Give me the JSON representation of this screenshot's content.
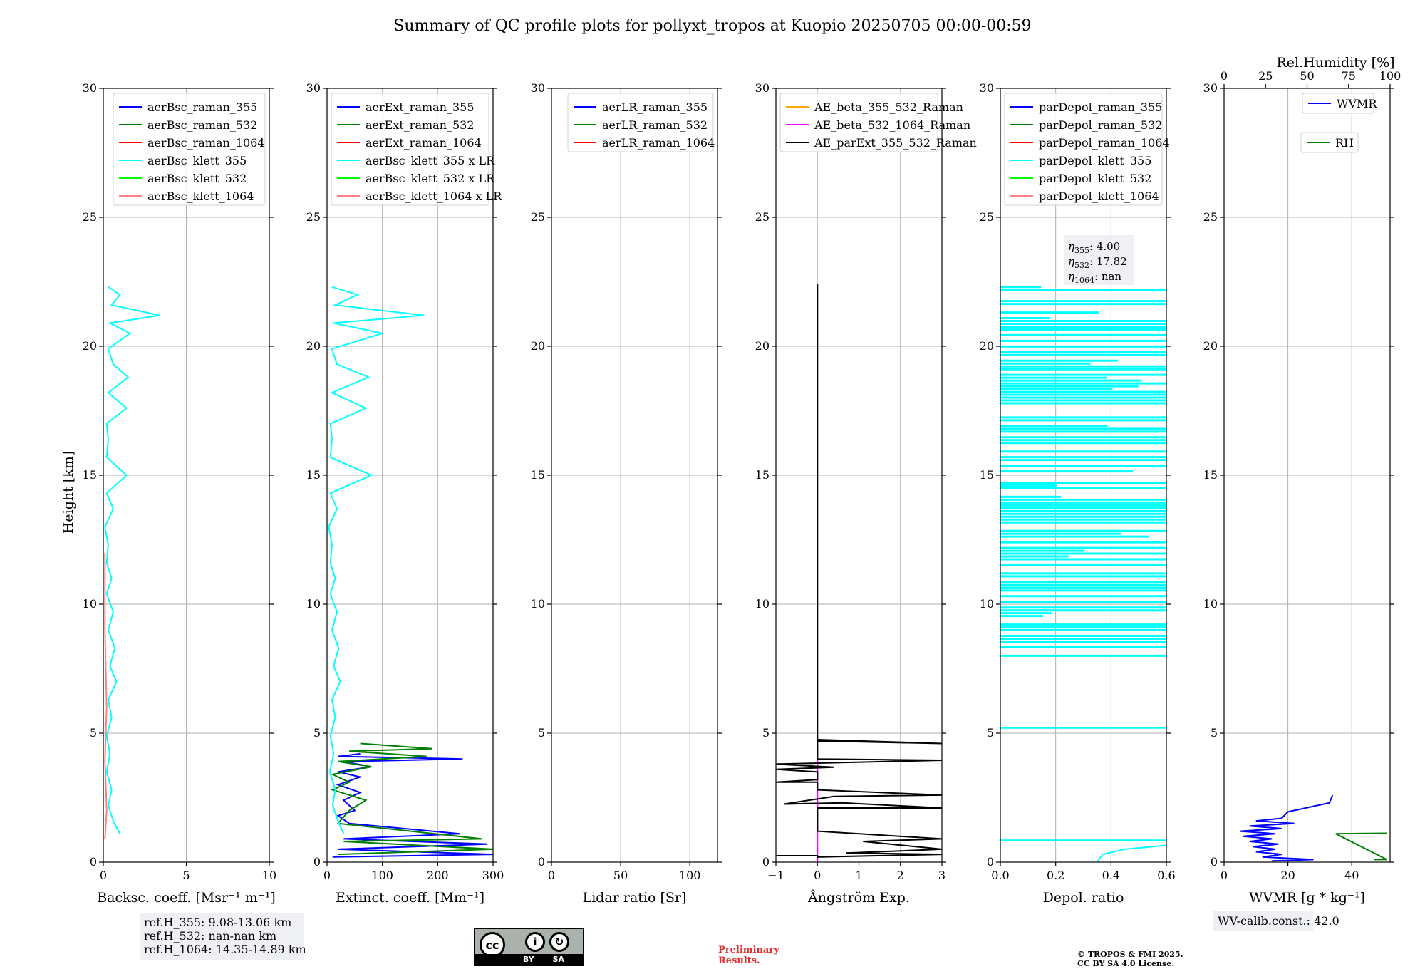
{
  "title": "Summary of QC profile plots for pollyxt_tropos at Kuopio 20250705 00:00-00:59",
  "y_axis_label": "Height [km]",
  "chart_data": [
    {
      "type": "line",
      "xlabel": "Backsc. coeff. [Msr⁻¹ m⁻¹]",
      "xlim": [
        0,
        10
      ],
      "ylim": [
        0,
        30
      ],
      "xticks": [
        "0",
        "5",
        "10"
      ],
      "yticks": [
        "0",
        "5",
        "10",
        "15",
        "20",
        "25",
        "30"
      ],
      "grid": true,
      "legend_position": "top-right",
      "legend": [
        "aerBsc_raman_355",
        "aerBsc_raman_532",
        "aerBsc_raman_1064",
        "aerBsc_klett_355",
        "aerBsc_klett_532",
        "aerBsc_klett_1064"
      ],
      "series_colors": [
        "#0000ff",
        "#008000",
        "#ff0000",
        "#00ffff",
        "#00ff00",
        "#ff8080"
      ],
      "annotation": [
        "ref.H_355: 9.08-13.06 km",
        "ref.H_532: nan-nan km",
        "ref.H_1064: 14.35-14.89 km"
      ],
      "series": [
        {
          "name": "aerBsc_klett_355",
          "color": "#00ffff",
          "points": [
            [
              1.0,
              1.1
            ],
            [
              0.6,
              1.6
            ],
            [
              0.3,
              2.2
            ],
            [
              0.5,
              2.8
            ],
            [
              0.2,
              3.5
            ],
            [
              0.4,
              4.2
            ],
            [
              0.2,
              4.9
            ],
            [
              0.5,
              5.6
            ],
            [
              0.3,
              6.3
            ],
            [
              0.8,
              7.0
            ],
            [
              0.4,
              7.6
            ],
            [
              0.7,
              8.3
            ],
            [
              0.3,
              9.0
            ],
            [
              0.6,
              9.7
            ],
            [
              0.2,
              10.4
            ],
            [
              0.5,
              11.0
            ],
            [
              0.2,
              11.6
            ],
            [
              0.3,
              12.3
            ],
            [
              0.1,
              13.0
            ],
            [
              0.6,
              13.7
            ],
            [
              0.2,
              14.3
            ],
            [
              1.4,
              15.0
            ],
            [
              0.2,
              15.7
            ],
            [
              0.3,
              16.4
            ],
            [
              0.2,
              17.0
            ],
            [
              1.4,
              17.6
            ],
            [
              0.3,
              18.2
            ],
            [
              1.5,
              18.8
            ],
            [
              0.6,
              19.3
            ],
            [
              0.3,
              19.9
            ],
            [
              1.6,
              20.5
            ],
            [
              0.4,
              20.9
            ],
            [
              3.4,
              21.2
            ],
            [
              0.5,
              21.6
            ],
            [
              1.0,
              22.0
            ],
            [
              0.3,
              22.3
            ]
          ]
        },
        {
          "name": "aerBsc_klett_1064",
          "color": "#ff8080",
          "points": [
            [
              0.1,
              0.9
            ],
            [
              0.2,
              2.0
            ],
            [
              0.1,
              4.0
            ],
            [
              0.2,
              6.0
            ],
            [
              0.1,
              9.0
            ],
            [
              0.1,
              12.0
            ]
          ]
        }
      ]
    },
    {
      "type": "line",
      "xlabel": "Extinct. coeff. [Mm⁻¹]",
      "xlim": [
        0,
        300
      ],
      "ylim": [
        0,
        30
      ],
      "xticks": [
        "0",
        "100",
        "200",
        "300"
      ],
      "yticks": [
        "0",
        "5",
        "10",
        "15",
        "20",
        "25",
        "30"
      ],
      "grid": true,
      "legend_position": "top-right",
      "legend": [
        "aerExt_raman_355",
        "aerExt_raman_532",
        "aerExt_raman_1064",
        "aerBsc_klett_355 x LR",
        "aerBsc_klett_532 x LR",
        "aerBsc_klett_1064 x LR"
      ],
      "series_colors": [
        "#0000ff",
        "#008000",
        "#ff0000",
        "#00ffff",
        "#00ff00",
        "#ff8080"
      ],
      "series": [
        {
          "name": "aerExt_raman_355",
          "color": "#0000ff",
          "points": [
            [
              10,
              0.2
            ],
            [
              300,
              0.3
            ],
            [
              20,
              0.5
            ],
            [
              290,
              0.7
            ],
            [
              30,
              0.9
            ],
            [
              240,
              1.1
            ],
            [
              40,
              1.5
            ],
            [
              20,
              1.8
            ],
            [
              50,
              2.0
            ],
            [
              30,
              2.4
            ],
            [
              60,
              2.7
            ],
            [
              20,
              3.0
            ],
            [
              60,
              3.3
            ],
            [
              20,
              3.5
            ],
            [
              80,
              3.7
            ],
            [
              30,
              3.9
            ],
            [
              245,
              4.0
            ],
            [
              20,
              4.1
            ],
            [
              60,
              4.2
            ]
          ]
        },
        {
          "name": "aerExt_raman_532",
          "color": "#008000",
          "points": [
            [
              20,
              0.3
            ],
            [
              300,
              0.5
            ],
            [
              30,
              0.8
            ],
            [
              280,
              0.9
            ],
            [
              20,
              1.5
            ],
            [
              40,
              2.0
            ],
            [
              70,
              2.4
            ],
            [
              10,
              2.8
            ],
            [
              40,
              3.1
            ],
            [
              10,
              3.4
            ],
            [
              80,
              3.7
            ],
            [
              20,
              3.9
            ],
            [
              180,
              4.1
            ],
            [
              40,
              4.3
            ],
            [
              190,
              4.4
            ],
            [
              60,
              4.6
            ]
          ]
        },
        {
          "name": "aerBsc_klett_355 x LR",
          "color": "#00ffff",
          "points": [
            [
              30,
              1.1
            ],
            [
              20,
              1.6
            ],
            [
              10,
              2.2
            ],
            [
              15,
              2.8
            ],
            [
              5,
              3.5
            ],
            [
              12,
              4.2
            ],
            [
              6,
              4.9
            ],
            [
              15,
              5.6
            ],
            [
              9,
              6.3
            ],
            [
              24,
              7.0
            ],
            [
              12,
              7.6
            ],
            [
              21,
              8.3
            ],
            [
              9,
              9.0
            ],
            [
              18,
              9.7
            ],
            [
              6,
              10.4
            ],
            [
              15,
              11.0
            ],
            [
              6,
              11.6
            ],
            [
              9,
              12.3
            ],
            [
              3,
              13.0
            ],
            [
              18,
              13.7
            ],
            [
              6,
              14.3
            ],
            [
              80,
              15.0
            ],
            [
              6,
              15.7
            ],
            [
              9,
              16.4
            ],
            [
              6,
              17.0
            ],
            [
              70,
              17.6
            ],
            [
              9,
              18.2
            ],
            [
              75,
              18.8
            ],
            [
              18,
              19.3
            ],
            [
              9,
              19.9
            ],
            [
              100,
              20.5
            ],
            [
              12,
              20.9
            ],
            [
              175,
              21.2
            ],
            [
              15,
              21.6
            ],
            [
              55,
              22.0
            ],
            [
              9,
              22.3
            ]
          ]
        }
      ]
    },
    {
      "type": "line",
      "xlabel": "Lidar ratio [Sr]",
      "xlim": [
        0,
        120
      ],
      "ylim": [
        0,
        30
      ],
      "xticks": [
        "0",
        "50",
        "100"
      ],
      "yticks": [
        "0",
        "5",
        "10",
        "15",
        "20",
        "25",
        "30"
      ],
      "grid": true,
      "legend_position": "top-right",
      "legend": [
        "aerLR_raman_355",
        "aerLR_raman_532",
        "aerLR_raman_1064"
      ],
      "series_colors": [
        "#0000ff",
        "#008000",
        "#ff0000"
      ],
      "series": []
    },
    {
      "type": "line",
      "xlabel": "Ångström Exp.",
      "xlim": [
        -1,
        3
      ],
      "ylim": [
        0,
        30
      ],
      "xticks": [
        "−1",
        "0",
        "1",
        "2",
        "3"
      ],
      "yticks": [
        "0",
        "5",
        "10",
        "15",
        "20",
        "25",
        "30"
      ],
      "grid": true,
      "legend_position": "top-right",
      "legend": [
        "AE_beta_355_532_Raman",
        "AE_beta_532_1064_Raman",
        "AE_parExt_355_532_Raman"
      ],
      "series_colors": [
        "#ffa500",
        "#ff00ff",
        "#000000"
      ],
      "series": [
        {
          "name": "AE_beta_532_1064_Raman",
          "color": "#ff00ff",
          "points": [
            [
              0,
              0
            ],
            [
              0,
              4.7
            ]
          ]
        },
        {
          "name": "AE_parExt_355_532_Raman",
          "color": "#000000",
          "points": [
            [
              -1,
              0.25
            ],
            [
              0,
              0.25
            ],
            [
              0,
              0.2
            ],
            [
              3,
              0.3
            ],
            [
              0.7,
              0.35
            ],
            [
              3,
              0.5
            ],
            [
              1.1,
              0.8
            ],
            [
              3,
              0.9
            ],
            [
              0,
              1.2
            ],
            [
              0,
              2.1
            ],
            [
              3,
              2.1
            ],
            [
              0.6,
              2.3
            ],
            [
              -0.8,
              2.25
            ],
            [
              0.4,
              2.55
            ],
            [
              3,
              2.6
            ],
            [
              0,
              2.8
            ],
            [
              0,
              3.1
            ],
            [
              -1,
              3.1
            ],
            [
              0,
              3.2
            ],
            [
              0,
              3.5
            ],
            [
              -1,
              3.6
            ],
            [
              0.4,
              3.68
            ],
            [
              -1,
              3.8
            ],
            [
              3,
              3.95
            ],
            [
              0,
              4.0
            ],
            [
              0,
              4.7
            ],
            [
              3,
              4.6
            ],
            [
              0,
              4.75
            ],
            [
              0,
              22.4
            ]
          ]
        }
      ]
    },
    {
      "type": "line",
      "xlabel": "Depol. ratio",
      "xlim": [
        0,
        0.6
      ],
      "ylim": [
        0,
        30
      ],
      "xticks": [
        "0.0",
        "0.2",
        "0.4",
        "0.6"
      ],
      "yticks": [
        "0",
        "5",
        "10",
        "15",
        "20",
        "25",
        "30"
      ],
      "grid": true,
      "legend_position": "top-right",
      "legend": [
        "parDepol_raman_355",
        "parDepol_raman_532",
        "parDepol_raman_1064",
        "parDepol_klett_355",
        "parDepol_klett_532",
        "parDepol_klett_1064"
      ],
      "series_colors": [
        "#0000ff",
        "#008000",
        "#ff0000",
        "#00ffff",
        "#00ff00",
        "#ff8080"
      ],
      "annotation_eta": [
        [
          "η",
          "355",
          ": 4.00"
        ],
        [
          "η",
          "532",
          ": 17.82"
        ],
        [
          "η",
          "1064",
          ": nan"
        ]
      ],
      "series": [
        {
          "name": "parDepol_klett_355",
          "color": "#00ffff",
          "points": [
            [
              0.35,
              0.0
            ],
            [
              0.37,
              0.3
            ],
            [
              0.45,
              0.5
            ],
            [
              0.6,
              0.65
            ]
          ]
        }
      ]
    },
    {
      "type": "line",
      "xlabel": "WVMR [g * kg⁻¹]",
      "xlim": [
        0,
        52
      ],
      "ylim": [
        0,
        30
      ],
      "xticks": [
        "0",
        "20",
        "40"
      ],
      "yticks": [
        "0",
        "5",
        "10",
        "15",
        "20",
        "25",
        "30"
      ],
      "top_xlabel": "Rel.Humidity [%]",
      "top_xlim": [
        0,
        100
      ],
      "top_xticks": [
        "0",
        "25",
        "50",
        "75",
        "100"
      ],
      "grid": true,
      "legend": [
        "WVMR",
        "RH"
      ],
      "series_colors": [
        "#0000ff",
        "#008000"
      ],
      "annotation": "WV-calib.const.: 42.0",
      "series": [
        {
          "name": "WVMR",
          "color": "#0000ff",
          "points": [
            [
              15,
              0.05
            ],
            [
              28,
              0.1
            ],
            [
              12,
              0.2
            ],
            [
              18,
              0.3
            ],
            [
              10,
              0.4
            ],
            [
              16,
              0.5
            ],
            [
              9,
              0.6
            ],
            [
              17,
              0.7
            ],
            [
              8,
              0.8
            ],
            [
              15,
              0.9
            ],
            [
              6,
              1.0
            ],
            [
              16,
              1.1
            ],
            [
              5,
              1.2
            ],
            [
              18,
              1.3
            ],
            [
              8,
              1.4
            ],
            [
              22,
              1.5
            ],
            [
              10,
              1.6
            ],
            [
              18,
              1.7
            ],
            [
              20,
              1.95
            ],
            [
              33,
              2.3
            ],
            [
              34,
              2.6
            ]
          ]
        },
        {
          "name": "RH",
          "color": "#008000",
          "points": [
            [
              47,
              0.1
            ],
            [
              51,
              0.1
            ],
            [
              35,
              1.1
            ],
            [
              51,
              1.12
            ]
          ]
        }
      ]
    }
  ],
  "license": {
    "by_text": "BY",
    "sa_text": "SA"
  },
  "notes": {
    "preliminary": [
      "Preliminary",
      "Results."
    ],
    "copyright": [
      "© TROPOS & FMI 2025.",
      "CC BY SA 4.0 License."
    ]
  }
}
